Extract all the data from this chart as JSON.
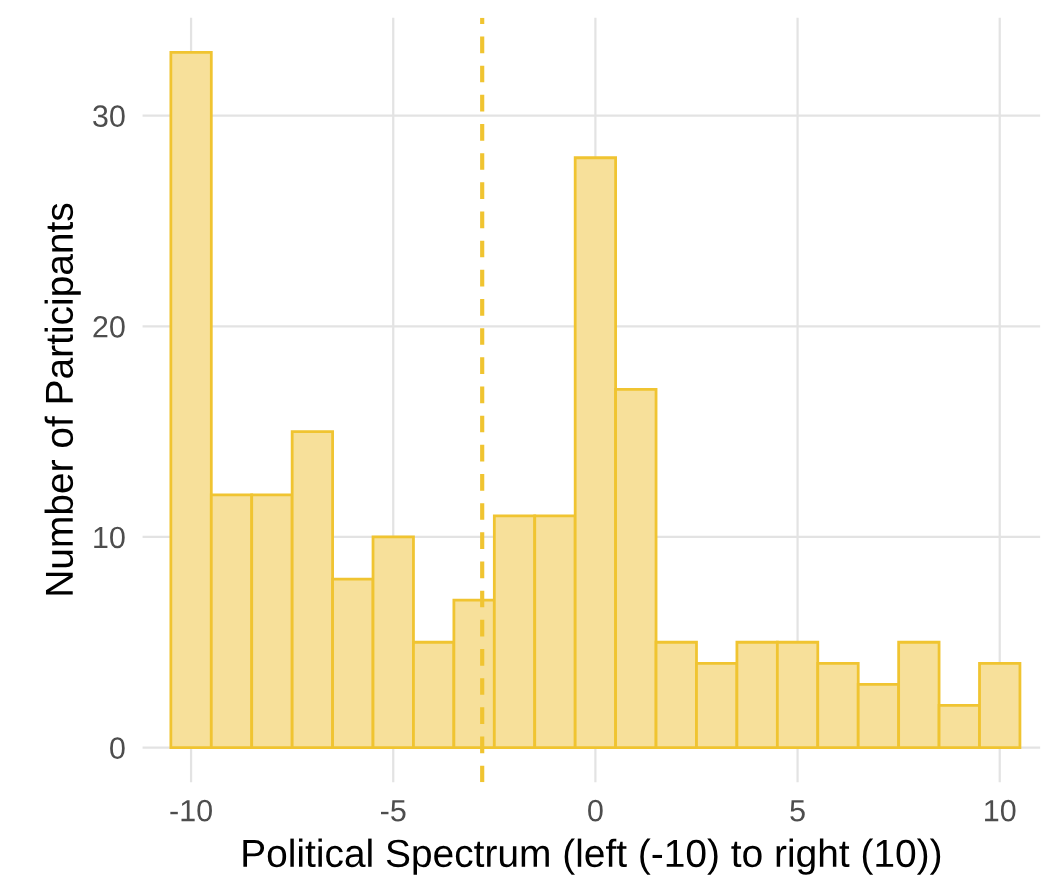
{
  "chart_data": {
    "type": "histogram",
    "xlabel": "Political Spectrum (left (-10) to right (10))",
    "ylabel": "Number of Participants",
    "bins": [
      -10.5,
      -9.5,
      -8.5,
      -7.5,
      -6.5,
      -5.5,
      -4.5,
      -3.5,
      -2.5,
      -1.5,
      -0.5,
      0.5,
      1.5,
      2.5,
      3.5,
      4.5,
      5.5,
      6.5,
      7.5,
      8.5,
      9.5,
      10.5
    ],
    "values": [
      33,
      12,
      12,
      15,
      8,
      10,
      5,
      7,
      11,
      11,
      28,
      17,
      5,
      4,
      5,
      5,
      4,
      3,
      5,
      2,
      4
    ],
    "color": "#f7e09a",
    "xlim": [
      -11.2,
      11.0
    ],
    "ylim": [
      -1.65,
      34.65
    ],
    "xticks": [
      -10,
      -5,
      0,
      5,
      10
    ],
    "yticks": [
      0,
      10,
      20,
      30
    ],
    "ref_lines": [
      {
        "axis": "x",
        "value": -2.8,
        "color": "#f0c431",
        "line_style": "dashed"
      }
    ],
    "grid": true,
    "legend": false
  }
}
